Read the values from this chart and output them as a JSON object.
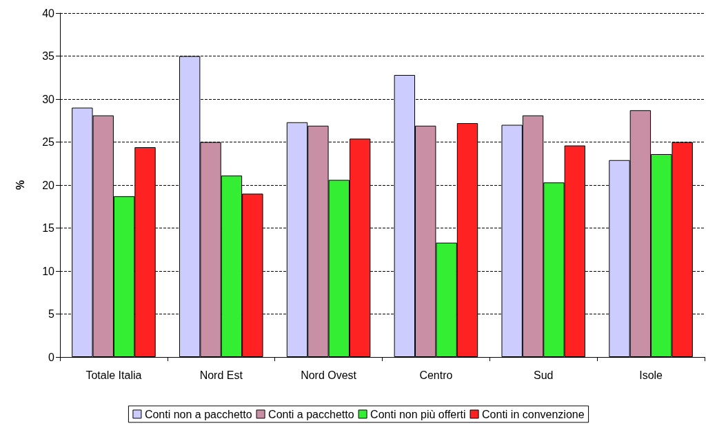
{
  "chart_data": {
    "type": "bar",
    "ylabel": "%",
    "categories": [
      "Totale Italia",
      "Nord Est",
      "Nord Ovest",
      "Centro",
      "Sud",
      "Isole"
    ],
    "series": [
      {
        "name": "Conti non a pacchetto",
        "color": "#ccccff",
        "values": [
          29.0,
          35.0,
          27.3,
          32.8,
          27.0,
          22.9
        ]
      },
      {
        "name": "Conti a pacchetto",
        "color": "#c98fa5",
        "values": [
          28.1,
          25.0,
          26.9,
          26.9,
          28.1,
          28.7
        ]
      },
      {
        "name": "Conti non più offerti",
        "color": "#33ee33",
        "values": [
          18.7,
          21.1,
          20.6,
          13.3,
          20.3,
          23.6
        ]
      },
      {
        "name": "Conti in convenzione",
        "color": "#ff2222",
        "values": [
          24.4,
          19.0,
          25.4,
          27.2,
          24.6,
          25.0
        ]
      }
    ],
    "ylim": [
      0,
      40
    ],
    "yticks": [
      0,
      5,
      10,
      15,
      20,
      25,
      30,
      35,
      40
    ],
    "grid": "y",
    "legend": "bottom"
  }
}
